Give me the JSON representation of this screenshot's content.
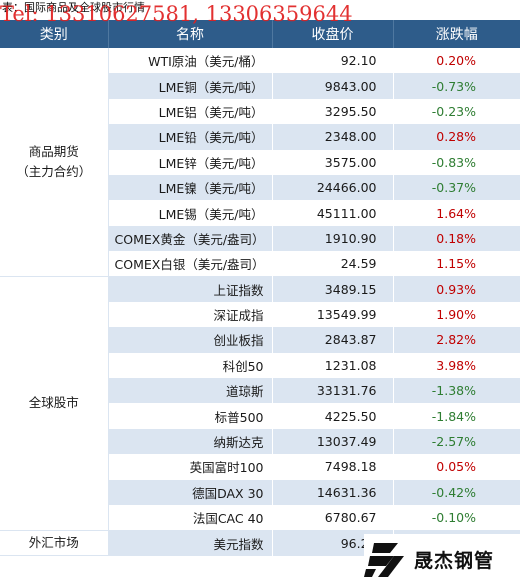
{
  "caption": "表：国际商品及全球股市行情",
  "overlay": "Tel: 13310627581, 13306359644",
  "header": {
    "category": "类别",
    "name": "名称",
    "close": "收盘价",
    "change": "涨跌幅"
  },
  "groups": [
    {
      "label_lines": [
        "商品期货",
        "（主力合约）"
      ],
      "rows": [
        {
          "name": "WTI原油（美元/桶）",
          "close": "92.10",
          "change": "0.20%",
          "dir": "up"
        },
        {
          "name": "LME铜（美元/吨）",
          "close": "9843.00",
          "change": "-0.73%",
          "dir": "down"
        },
        {
          "name": "LME铝（美元/吨）",
          "close": "3295.50",
          "change": "-0.23%",
          "dir": "down"
        },
        {
          "name": "LME铅（美元/吨）",
          "close": "2348.00",
          "change": "0.28%",
          "dir": "up"
        },
        {
          "name": "LME锌（美元/吨）",
          "close": "3575.00",
          "change": "-0.83%",
          "dir": "down"
        },
        {
          "name": "LME镍（美元/吨）",
          "close": "24466.00",
          "change": "-0.37%",
          "dir": "down"
        },
        {
          "name": "LME锡（美元/吨）",
          "close": "45111.00",
          "change": "1.64%",
          "dir": "up"
        },
        {
          "name": "COMEX黄金（美元/盎司）",
          "close": "1910.90",
          "change": "0.18%",
          "dir": "up"
        },
        {
          "name": "COMEX白银（美元/盎司）",
          "close": "24.59",
          "change": "1.15%",
          "dir": "up"
        }
      ]
    },
    {
      "label_lines": [
        "全球股市"
      ],
      "rows": [
        {
          "name": "上证指数",
          "close": "3489.15",
          "change": "0.93%",
          "dir": "up"
        },
        {
          "name": "深证成指",
          "close": "13549.99",
          "change": "1.90%",
          "dir": "up"
        },
        {
          "name": "创业板指",
          "close": "2843.87",
          "change": "2.82%",
          "dir": "up"
        },
        {
          "name": "科创50",
          "close": "1231.08",
          "change": "3.98%",
          "dir": "up"
        },
        {
          "name": "道琼斯",
          "close": "33131.76",
          "change": "-1.38%",
          "dir": "down"
        },
        {
          "name": "标普500",
          "close": "4225.50",
          "change": "-1.84%",
          "dir": "down"
        },
        {
          "name": "纳斯达克",
          "close": "13037.49",
          "change": "-2.57%",
          "dir": "down"
        },
        {
          "name": "英国富时100",
          "close": "7498.18",
          "change": "0.05%",
          "dir": "up"
        },
        {
          "name": "德国DAX 30",
          "close": "14631.36",
          "change": "-0.42%",
          "dir": "down"
        },
        {
          "name": "法国CAC 40",
          "close": "6780.67",
          "change": "-0.10%",
          "dir": "down"
        }
      ]
    },
    {
      "label_lines": [
        "外汇市场"
      ],
      "rows": [
        {
          "name": "美元指数",
          "close": "96.20",
          "change": "",
          "dir": "none"
        }
      ]
    }
  ],
  "colors": {
    "header_bg": "#2e5c8a",
    "band": "#dbe5f1",
    "up": "#c00000",
    "down": "#2e7d32"
  },
  "logo": {
    "text": "晟杰钢管",
    "icon": "sj-logo-icon"
  }
}
